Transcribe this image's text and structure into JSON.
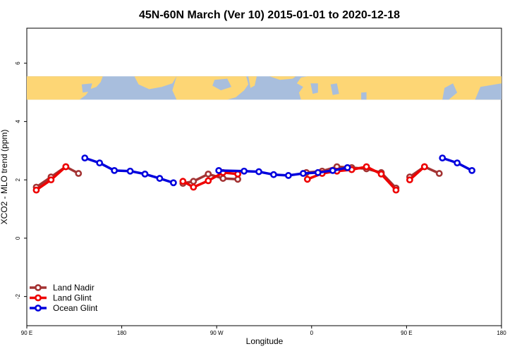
{
  "chart_data": {
    "type": "line",
    "title": "45N-60N March (Ver 10)   2015-01-01 to 2020-12-18",
    "xlabel": "Longitude",
    "ylabel": "XCO2 - MLO trend (ppm)",
    "xlim": [
      90,
      540
    ],
    "ylim": [
      -3,
      7.2
    ],
    "x_ticks": [
      {
        "value": 90,
        "label": "90 E"
      },
      {
        "value": 180,
        "label": "180"
      },
      {
        "value": 270,
        "label": "90 W"
      },
      {
        "value": 360,
        "label": "0"
      },
      {
        "value": 450,
        "label": "90 E"
      },
      {
        "value": 540,
        "label": "180"
      }
    ],
    "y_ticks": [
      {
        "value": -2,
        "label": "-2"
      },
      {
        "value": 0,
        "label": "0"
      },
      {
        "value": 2,
        "label": "2"
      },
      {
        "value": 4,
        "label": "4"
      },
      {
        "value": 6,
        "label": "6"
      }
    ],
    "map_band": {
      "y_min": 4.75,
      "y_max": 5.55,
      "land_color": "#fdd675",
      "ocean_color": "#a8bedd"
    },
    "series": [
      {
        "name": "Land Nadir",
        "color": "#a33333",
        "segments": [
          {
            "x": [
              99,
              113,
              127,
              139
            ],
            "y": [
              1.75,
              2.1,
              2.45,
              2.22
            ]
          },
          {
            "x": [
              238,
              248,
              262,
              276,
              290
            ],
            "y": [
              1.88,
              1.95,
              2.2,
              2.05,
              2.02
            ]
          },
          {
            "x": [
              355,
              370,
              384,
              398,
              412,
              426,
              440
            ],
            "y": [
              2.25,
              2.3,
              2.45,
              2.42,
              2.38,
              2.25,
              1.72
            ]
          },
          {
            "x": [
              453,
              467,
              481
            ],
            "y": [
              2.1,
              2.45,
              2.22
            ]
          }
        ]
      },
      {
        "name": "Land Glint",
        "color": "#ee0000",
        "segments": [
          {
            "x": [
              99,
              113,
              127
            ],
            "y": [
              1.65,
              2.0,
              2.45
            ]
          },
          {
            "x": [
              238,
              248,
              262,
              276,
              290
            ],
            "y": [
              1.95,
              1.75,
              1.97,
              2.25,
              2.2
            ]
          },
          {
            "x": [
              356,
              370,
              384,
              398,
              412,
              426,
              440
            ],
            "y": [
              2.02,
              2.22,
              2.3,
              2.35,
              2.45,
              2.2,
              1.65
            ]
          },
          {
            "x": [
              453,
              467
            ],
            "y": [
              2.0,
              2.45
            ]
          }
        ]
      },
      {
        "name": "Ocean Glint",
        "color": "#0000dd",
        "segments": [
          {
            "x": [
              145,
              159,
              173,
              188,
              202,
              216,
              229
            ],
            "y": [
              2.75,
              2.58,
              2.32,
              2.3,
              2.2,
              2.05,
              1.9
            ]
          },
          {
            "x": [
              272,
              296,
              310,
              324,
              338,
              352,
              366,
              380,
              394
            ],
            "y": [
              2.32,
              2.3,
              2.28,
              2.18,
              2.15,
              2.22,
              2.25,
              2.32,
              2.42
            ]
          },
          {
            "x": [
              484,
              498,
              512
            ],
            "y": [
              2.75,
              2.58,
              2.32
            ]
          }
        ]
      }
    ],
    "legend": {
      "position": "bottom-left",
      "entries": [
        "Land Nadir",
        "Land Glint",
        "Ocean Glint"
      ]
    }
  }
}
